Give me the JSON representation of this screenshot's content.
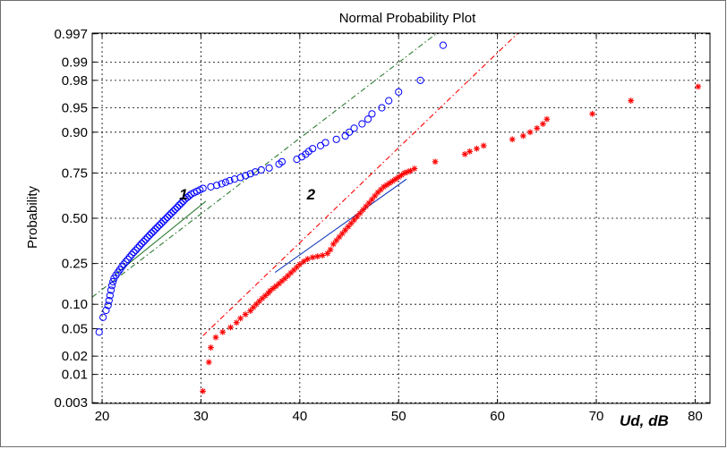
{
  "chart_data": {
    "type": "scatter",
    "title": "Normal Probability Plot",
    "xlabel": "Ud, dB",
    "ylabel": "Probability",
    "xlim": [
      19,
      81.5
    ],
    "xticks": [
      20,
      30,
      40,
      50,
      60,
      70,
      80
    ],
    "yscale": "normal-probability",
    "yticks": [
      0.003,
      0.01,
      0.02,
      0.05,
      0.1,
      0.25,
      0.5,
      0.75,
      0.9,
      0.95,
      0.98,
      0.99,
      0.997
    ],
    "ytick_labels": [
      "0.003",
      "0.01",
      "0.02",
      "0.05",
      "0.10",
      "0.25",
      "0.50",
      "0.75",
      "0.90",
      "0.95",
      "0.98",
      "0.99",
      "0.997"
    ],
    "grid": true,
    "annotations": [
      {
        "text": "1",
        "x": 27.8,
        "p": 0.64
      },
      {
        "text": "2",
        "x": 40.7,
        "p": 0.64
      }
    ],
    "series": [
      {
        "label": "1",
        "marker": "circle",
        "color": "#0000ff",
        "x": [
          19.7,
          20.1,
          20.4,
          20.6,
          20.7,
          20.8,
          20.9,
          21.0,
          21.1,
          21.2,
          21.4,
          21.6,
          21.8,
          22.0,
          22.2,
          22.4,
          22.6,
          22.8,
          23.0,
          23.2,
          23.4,
          23.6,
          23.8,
          24.0,
          24.2,
          24.4,
          24.6,
          24.8,
          25.0,
          25.2,
          25.4,
          25.6,
          25.8,
          26.0,
          26.2,
          26.4,
          26.6,
          26.8,
          27.0,
          27.2,
          27.4,
          27.6,
          27.8,
          28.0,
          28.2,
          28.4,
          28.6,
          28.8,
          29.0,
          29.3,
          29.6,
          29.9,
          30.2,
          31.0,
          31.6,
          32.1,
          32.5,
          32.9,
          33.4,
          34.0,
          34.5,
          35.0,
          35.5,
          36.1,
          36.9,
          37.9,
          38.2,
          39.7,
          40.2,
          40.6,
          40.9,
          41.3,
          42.1,
          42.6,
          43.7,
          44.6,
          45.0,
          45.5,
          46.3,
          46.9,
          47.3,
          48.3,
          49.0,
          50.0,
          52.2,
          54.5
        ],
        "p": [
          0.045,
          0.07,
          0.085,
          0.097,
          0.11,
          0.125,
          0.142,
          0.158,
          0.172,
          0.185,
          0.198,
          0.21,
          0.222,
          0.235,
          0.247,
          0.259,
          0.27,
          0.282,
          0.294,
          0.306,
          0.317,
          0.329,
          0.341,
          0.353,
          0.364,
          0.376,
          0.388,
          0.4,
          0.412,
          0.423,
          0.435,
          0.447,
          0.459,
          0.47,
          0.482,
          0.494,
          0.506,
          0.518,
          0.53,
          0.541,
          0.553,
          0.565,
          0.577,
          0.588,
          0.6,
          0.612,
          0.621,
          0.63,
          0.64,
          0.648,
          0.656,
          0.664,
          0.672,
          0.68,
          0.688,
          0.696,
          0.704,
          0.712,
          0.72,
          0.728,
          0.737,
          0.746,
          0.755,
          0.764,
          0.773,
          0.79,
          0.8,
          0.81,
          0.82,
          0.83,
          0.84,
          0.85,
          0.86,
          0.87,
          0.88,
          0.89,
          0.9,
          0.91,
          0.92,
          0.93,
          0.94,
          0.95,
          0.96,
          0.97,
          0.98,
          0.995
        ]
      },
      {
        "label": "2",
        "marker": "star",
        "color": "#ff0000",
        "x": [
          30.2,
          30.8,
          31.0,
          31.5,
          32.2,
          33.0,
          33.6,
          34.0,
          34.5,
          35.0,
          35.3,
          35.6,
          35.9,
          36.2,
          36.5,
          36.8,
          37.0,
          37.3,
          37.6,
          37.9,
          38.2,
          38.5,
          38.8,
          39.1,
          39.4,
          39.7,
          40.0,
          40.4,
          40.8,
          41.3,
          41.8,
          42.3,
          42.8,
          43.1,
          43.4,
          43.7,
          44.0,
          44.3,
          44.6,
          44.9,
          45.2,
          45.5,
          45.8,
          46.1,
          46.4,
          46.7,
          47.0,
          47.3,
          47.6,
          47.9,
          48.2,
          48.5,
          48.8,
          49.1,
          49.4,
          49.7,
          50.0,
          50.3,
          50.6,
          50.9,
          51.2,
          51.6,
          53.7,
          56.7,
          57.2,
          57.9,
          58.6,
          61.5,
          62.6,
          63.3,
          64.0,
          64.6,
          65.0,
          69.6,
          73.5,
          80.3
        ],
        "p": [
          0.005,
          0.016,
          0.027,
          0.038,
          0.045,
          0.052,
          0.06,
          0.068,
          0.076,
          0.084,
          0.092,
          0.1,
          0.108,
          0.116,
          0.124,
          0.132,
          0.14,
          0.148,
          0.156,
          0.165,
          0.175,
          0.185,
          0.196,
          0.208,
          0.22,
          0.233,
          0.246,
          0.26,
          0.272,
          0.28,
          0.285,
          0.29,
          0.3,
          0.32,
          0.35,
          0.37,
          0.39,
          0.41,
          0.43,
          0.45,
          0.47,
          0.49,
          0.51,
          0.53,
          0.55,
          0.57,
          0.59,
          0.61,
          0.63,
          0.65,
          0.665,
          0.68,
          0.69,
          0.7,
          0.71,
          0.72,
          0.73,
          0.74,
          0.75,
          0.755,
          0.76,
          0.77,
          0.8,
          0.83,
          0.84,
          0.85,
          0.86,
          0.88,
          0.89,
          0.9,
          0.91,
          0.92,
          0.93,
          0.94,
          0.96,
          0.975
        ]
      }
    ],
    "fit_lines": [
      {
        "series": "1",
        "style": "solid",
        "color": "#2e7d32",
        "x": [
          21.3,
          30.5
        ],
        "p": [
          0.2,
          0.6
        ]
      },
      {
        "series": "1",
        "style": "dash-dot",
        "color": "#2e7d32",
        "x": [
          19.0,
          53.8
        ],
        "p": [
          0.12,
          0.997
        ]
      },
      {
        "series": "2",
        "style": "solid",
        "color": "#1a3fbf",
        "x": [
          37.5,
          50.8
        ],
        "p": [
          0.21,
          0.72
        ]
      },
      {
        "series": "2",
        "style": "dash-dot",
        "color": "#ff0000",
        "x": [
          30.2,
          62.0
        ],
        "p": [
          0.04,
          0.997
        ]
      }
    ]
  }
}
